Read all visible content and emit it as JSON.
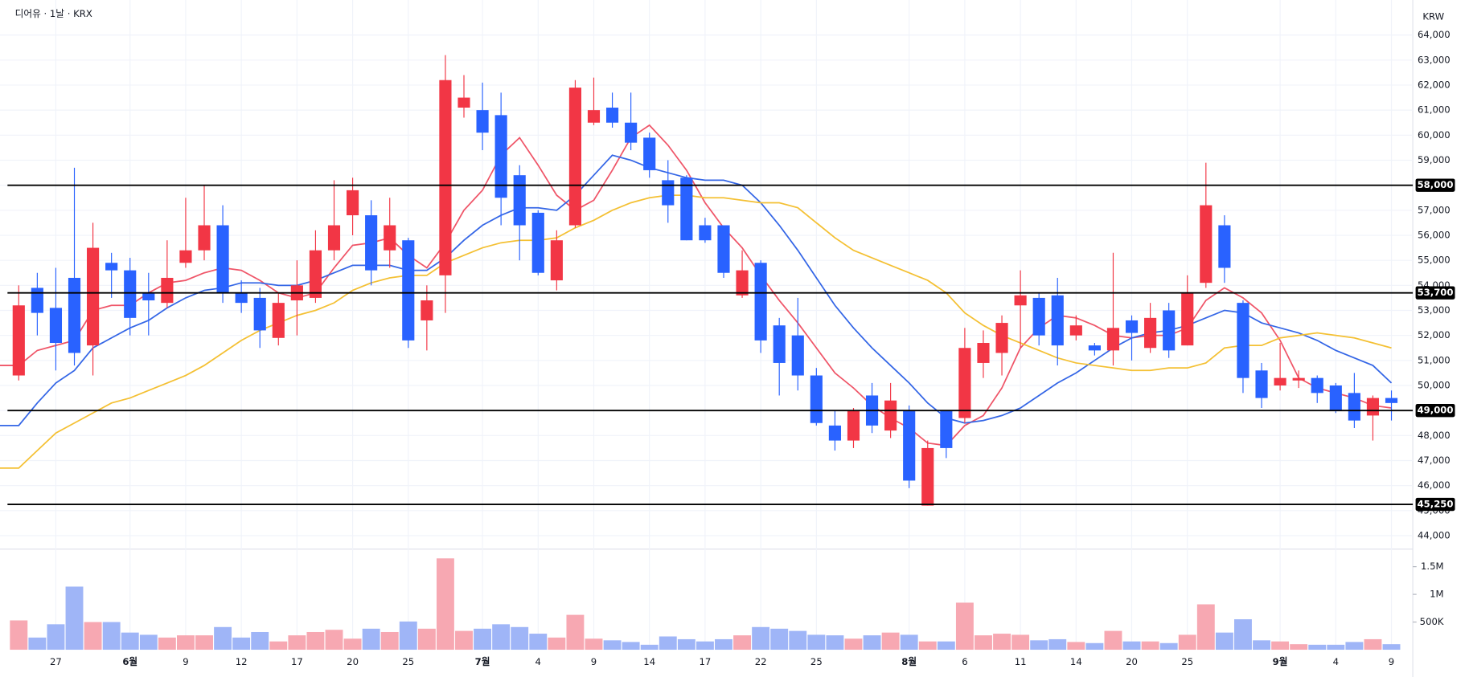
{
  "chart_data": {
    "type": "candlestick",
    "title": "디어유 · 1날 · KRX",
    "currency": "KRW",
    "up_color": "#f23645",
    "down_color": "#2962ff",
    "up_volume_color": "#f7a8b2",
    "down_volume_color": "#9fb5f7",
    "categories": [
      null,
      null,
      "27",
      null,
      null,
      null,
      "6월",
      null,
      null,
      "9",
      null,
      null,
      "12",
      null,
      null,
      "17",
      null,
      null,
      "20",
      null,
      null,
      "25",
      null,
      null,
      null,
      "7월",
      null,
      null,
      "4",
      null,
      null,
      "9",
      null,
      null,
      "14",
      null,
      null,
      "17",
      null,
      null,
      "22",
      null,
      null,
      "25",
      null,
      null,
      null,
      null,
      "8월",
      null,
      null,
      "6",
      null,
      null,
      "11",
      null,
      null,
      "14",
      null,
      null,
      "20",
      null,
      null,
      "25",
      null,
      null,
      null,
      null,
      "9월",
      null,
      null,
      "4",
      null,
      null,
      "9"
    ],
    "open": [
      50400,
      53900,
      53100,
      54300,
      51600,
      54900,
      54600,
      53700,
      53300,
      54900,
      55400,
      56400,
      53700,
      53500,
      51900,
      53400,
      53500,
      55400,
      56800,
      56800,
      55400,
      55800,
      52600,
      54400,
      61100,
      61000,
      60800,
      58400,
      56900,
      54200,
      56400,
      60500,
      61100,
      60500,
      59900,
      58200,
      58300,
      56400,
      56400,
      53600,
      54900,
      52400,
      52000,
      50400,
      48400,
      47800,
      49600,
      48200,
      49000,
      45200,
      49000,
      48700,
      50900,
      51300,
      53200,
      53500,
      53600,
      52000,
      51600,
      51400,
      52600,
      51500,
      53000,
      51600,
      54100,
      56400,
      53300,
      50600,
      50000,
      50200,
      50300,
      50000,
      49700,
      48800,
      49500
    ],
    "high": [
      54000,
      54500,
      54700,
      58700,
      56500,
      55300,
      55100,
      54500,
      55800,
      57500,
      58000,
      57200,
      54200,
      53900,
      53700,
      55000,
      56200,
      58200,
      58300,
      57400,
      57500,
      55900,
      54000,
      63200,
      62400,
      62100,
      61700,
      58800,
      57000,
      56200,
      62200,
      62300,
      61700,
      61700,
      60100,
      59000,
      58400,
      56700,
      56400,
      55400,
      55000,
      52700,
      53500,
      50700,
      49000,
      49100,
      50100,
      50100,
      49200,
      47800,
      49000,
      52300,
      52200,
      52800,
      54600,
      53700,
      54300,
      52800,
      51700,
      55300,
      52800,
      53300,
      53300,
      54400,
      58900,
      56800,
      53400,
      50900,
      51700,
      50600,
      50400,
      50100,
      50500,
      49600,
      49800
    ],
    "low": [
      50200,
      52000,
      50600,
      50800,
      50400,
      53500,
      52000,
      52000,
      53100,
      54700,
      55000,
      53300,
      52900,
      51500,
      51600,
      52000,
      53300,
      55000,
      56000,
      54000,
      54700,
      51500,
      51400,
      52900,
      60700,
      59400,
      56400,
      55000,
      54400,
      53800,
      56300,
      60400,
      60300,
      59400,
      58300,
      56500,
      55800,
      55700,
      54300,
      53500,
      51300,
      49600,
      49800,
      48400,
      47400,
      47500,
      48100,
      47900,
      45900,
      45200,
      47100,
      48500,
      50300,
      50400,
      51500,
      51600,
      50800,
      51800,
      51200,
      50800,
      51000,
      51300,
      51100,
      51600,
      53900,
      54100,
      49700,
      49100,
      49800,
      49900,
      49300,
      48900,
      48300,
      47800,
      48600
    ],
    "close": [
      53200,
      52900,
      51700,
      51300,
      55500,
      54600,
      52700,
      53400,
      54300,
      55400,
      56400,
      53700,
      53300,
      52200,
      53300,
      54000,
      55400,
      56400,
      57800,
      54600,
      56400,
      51800,
      53400,
      62200,
      61500,
      60100,
      57500,
      56400,
      54500,
      55800,
      61900,
      61000,
      60500,
      59700,
      58600,
      57200,
      55800,
      55800,
      54500,
      54600,
      51800,
      50900,
      50400,
      48500,
      47800,
      49000,
      48400,
      49400,
      46200,
      47500,
      47500,
      51500,
      51700,
      52500,
      53600,
      52000,
      51600,
      52400,
      51400,
      52300,
      52100,
      52700,
      51400,
      53700,
      57200,
      54700,
      50300,
      49500,
      50300,
      50300,
      49700,
      49000,
      48600,
      49500,
      49300
    ],
    "moving_averages": [
      {
        "color": "#ef5568",
        "values": [
          50800,
          51400,
          51600,
          51800,
          53000,
          53200,
          53200,
          53700,
          54100,
          54200,
          54500,
          54700,
          54600,
          54200,
          53700,
          53500,
          53700,
          54700,
          55600,
          55700,
          55900,
          55200,
          54700,
          55700,
          57000,
          57800,
          59200,
          59900,
          58800,
          57600,
          57000,
          57400,
          58600,
          59900,
          60400,
          59600,
          58600,
          57300,
          56300,
          55500,
          54400,
          53400,
          52500,
          51500,
          50500,
          49900,
          49200,
          48700,
          48300,
          47700,
          47600,
          48400,
          48800,
          49900,
          51500,
          52300,
          52800,
          52700,
          52400,
          52000,
          51900,
          52000,
          52000,
          52300,
          53400,
          53900,
          53500,
          52900,
          51800,
          50300,
          49900,
          49700,
          49500,
          49200,
          49100
        ]
      },
      {
        "color": "#3466e6",
        "values": [
          48400,
          49300,
          50100,
          50600,
          51500,
          51900,
          52300,
          52600,
          53100,
          53500,
          53800,
          53900,
          54100,
          54100,
          54000,
          54000,
          54200,
          54500,
          54800,
          54800,
          54800,
          54600,
          54600,
          55100,
          55800,
          56400,
          56800,
          57100,
          57100,
          57000,
          57600,
          58400,
          59200,
          59000,
          58700,
          58500,
          58300,
          58200,
          58200,
          58000,
          57300,
          56400,
          55400,
          54300,
          53200,
          52300,
          51500,
          50800,
          50100,
          49300,
          48700,
          48500,
          48600,
          48800,
          49100,
          49600,
          50100,
          50500,
          51000,
          51500,
          51900,
          52100,
          52200,
          52400,
          52700,
          53000,
          52900,
          52500,
          52300,
          52100,
          51800,
          51400,
          51100,
          50800,
          50100
        ]
      },
      {
        "color": "#f4c033",
        "values": [
          46700,
          47400,
          48100,
          48500,
          48900,
          49300,
          49500,
          49800,
          50100,
          50400,
          50800,
          51300,
          51800,
          52200,
          52500,
          52800,
          53000,
          53300,
          53800,
          54100,
          54300,
          54400,
          54400,
          54900,
          55200,
          55500,
          55700,
          55800,
          55800,
          55900,
          56300,
          56600,
          57000,
          57300,
          57500,
          57600,
          57600,
          57500,
          57500,
          57400,
          57300,
          57300,
          57100,
          56500,
          55900,
          55400,
          55100,
          54800,
          54500,
          54200,
          53700,
          52900,
          52400,
          52000,
          51700,
          51400,
          51100,
          50900,
          50800,
          50700,
          50600,
          50600,
          50700,
          50700,
          50900,
          51500,
          51600,
          51600,
          51900,
          52000,
          52100,
          52000,
          51900,
          51700,
          51500
        ]
      }
    ],
    "ylim": [
      43500,
      65400
    ],
    "yticks": [
      {
        "value": 44000,
        "label": "44,000"
      },
      {
        "value": 45000,
        "label": "45,000"
      },
      {
        "value": 46000,
        "label": "46,000"
      },
      {
        "value": 47000,
        "label": "47,000"
      },
      {
        "value": 48000,
        "label": "48,000"
      },
      {
        "value": 49000,
        "label": "49,000"
      },
      {
        "value": 50000,
        "label": "50,000"
      },
      {
        "value": 51000,
        "label": "51,000"
      },
      {
        "value": 52000,
        "label": "52,000"
      },
      {
        "value": 53000,
        "label": "53,000"
      },
      {
        "value": 54000,
        "label": "54,000"
      },
      {
        "value": 55000,
        "label": "55,000"
      },
      {
        "value": 56000,
        "label": "56,000"
      },
      {
        "value": 57000,
        "label": "57,000"
      },
      {
        "value": 58000,
        "label": "58,000"
      },
      {
        "value": 59000,
        "label": "59,000"
      },
      {
        "value": 60000,
        "label": "60,000"
      },
      {
        "value": 61000,
        "label": "61,000"
      },
      {
        "value": 62000,
        "label": "62,000"
      },
      {
        "value": 63000,
        "label": "63,000"
      },
      {
        "value": 64000,
        "label": "64,000"
      }
    ],
    "levels": [
      {
        "value": 58000,
        "label": "58,000"
      },
      {
        "value": 53700,
        "label": "53,700"
      },
      {
        "value": 49000,
        "label": "49,000"
      },
      {
        "value": 45250,
        "label": "45,250"
      }
    ],
    "grid": true,
    "volume": {
      "values": [
        530000,
        220000,
        460000,
        1140000,
        500000,
        500000,
        310000,
        270000,
        220000,
        260000,
        260000,
        410000,
        220000,
        320000,
        150000,
        260000,
        320000,
        360000,
        200000,
        380000,
        320000,
        510000,
        380000,
        1650000,
        340000,
        380000,
        460000,
        410000,
        290000,
        220000,
        630000,
        200000,
        170000,
        140000,
        90000,
        240000,
        190000,
        150000,
        190000,
        260000,
        410000,
        380000,
        340000,
        270000,
        260000,
        200000,
        260000,
        310000,
        270000,
        150000,
        150000,
        850000,
        260000,
        290000,
        270000,
        170000,
        190000,
        140000,
        120000,
        340000,
        150000,
        150000,
        120000,
        270000,
        820000,
        310000,
        550000,
        170000,
        150000,
        100000,
        90000,
        90000,
        140000,
        190000,
        100000
      ],
      "ylim": [
        0,
        1800000
      ],
      "yticks": [
        {
          "value": 500000,
          "label": "500K"
        },
        {
          "value": 1000000,
          "label": "1M"
        },
        {
          "value": 1500000,
          "label": "1.5M"
        }
      ]
    }
  }
}
